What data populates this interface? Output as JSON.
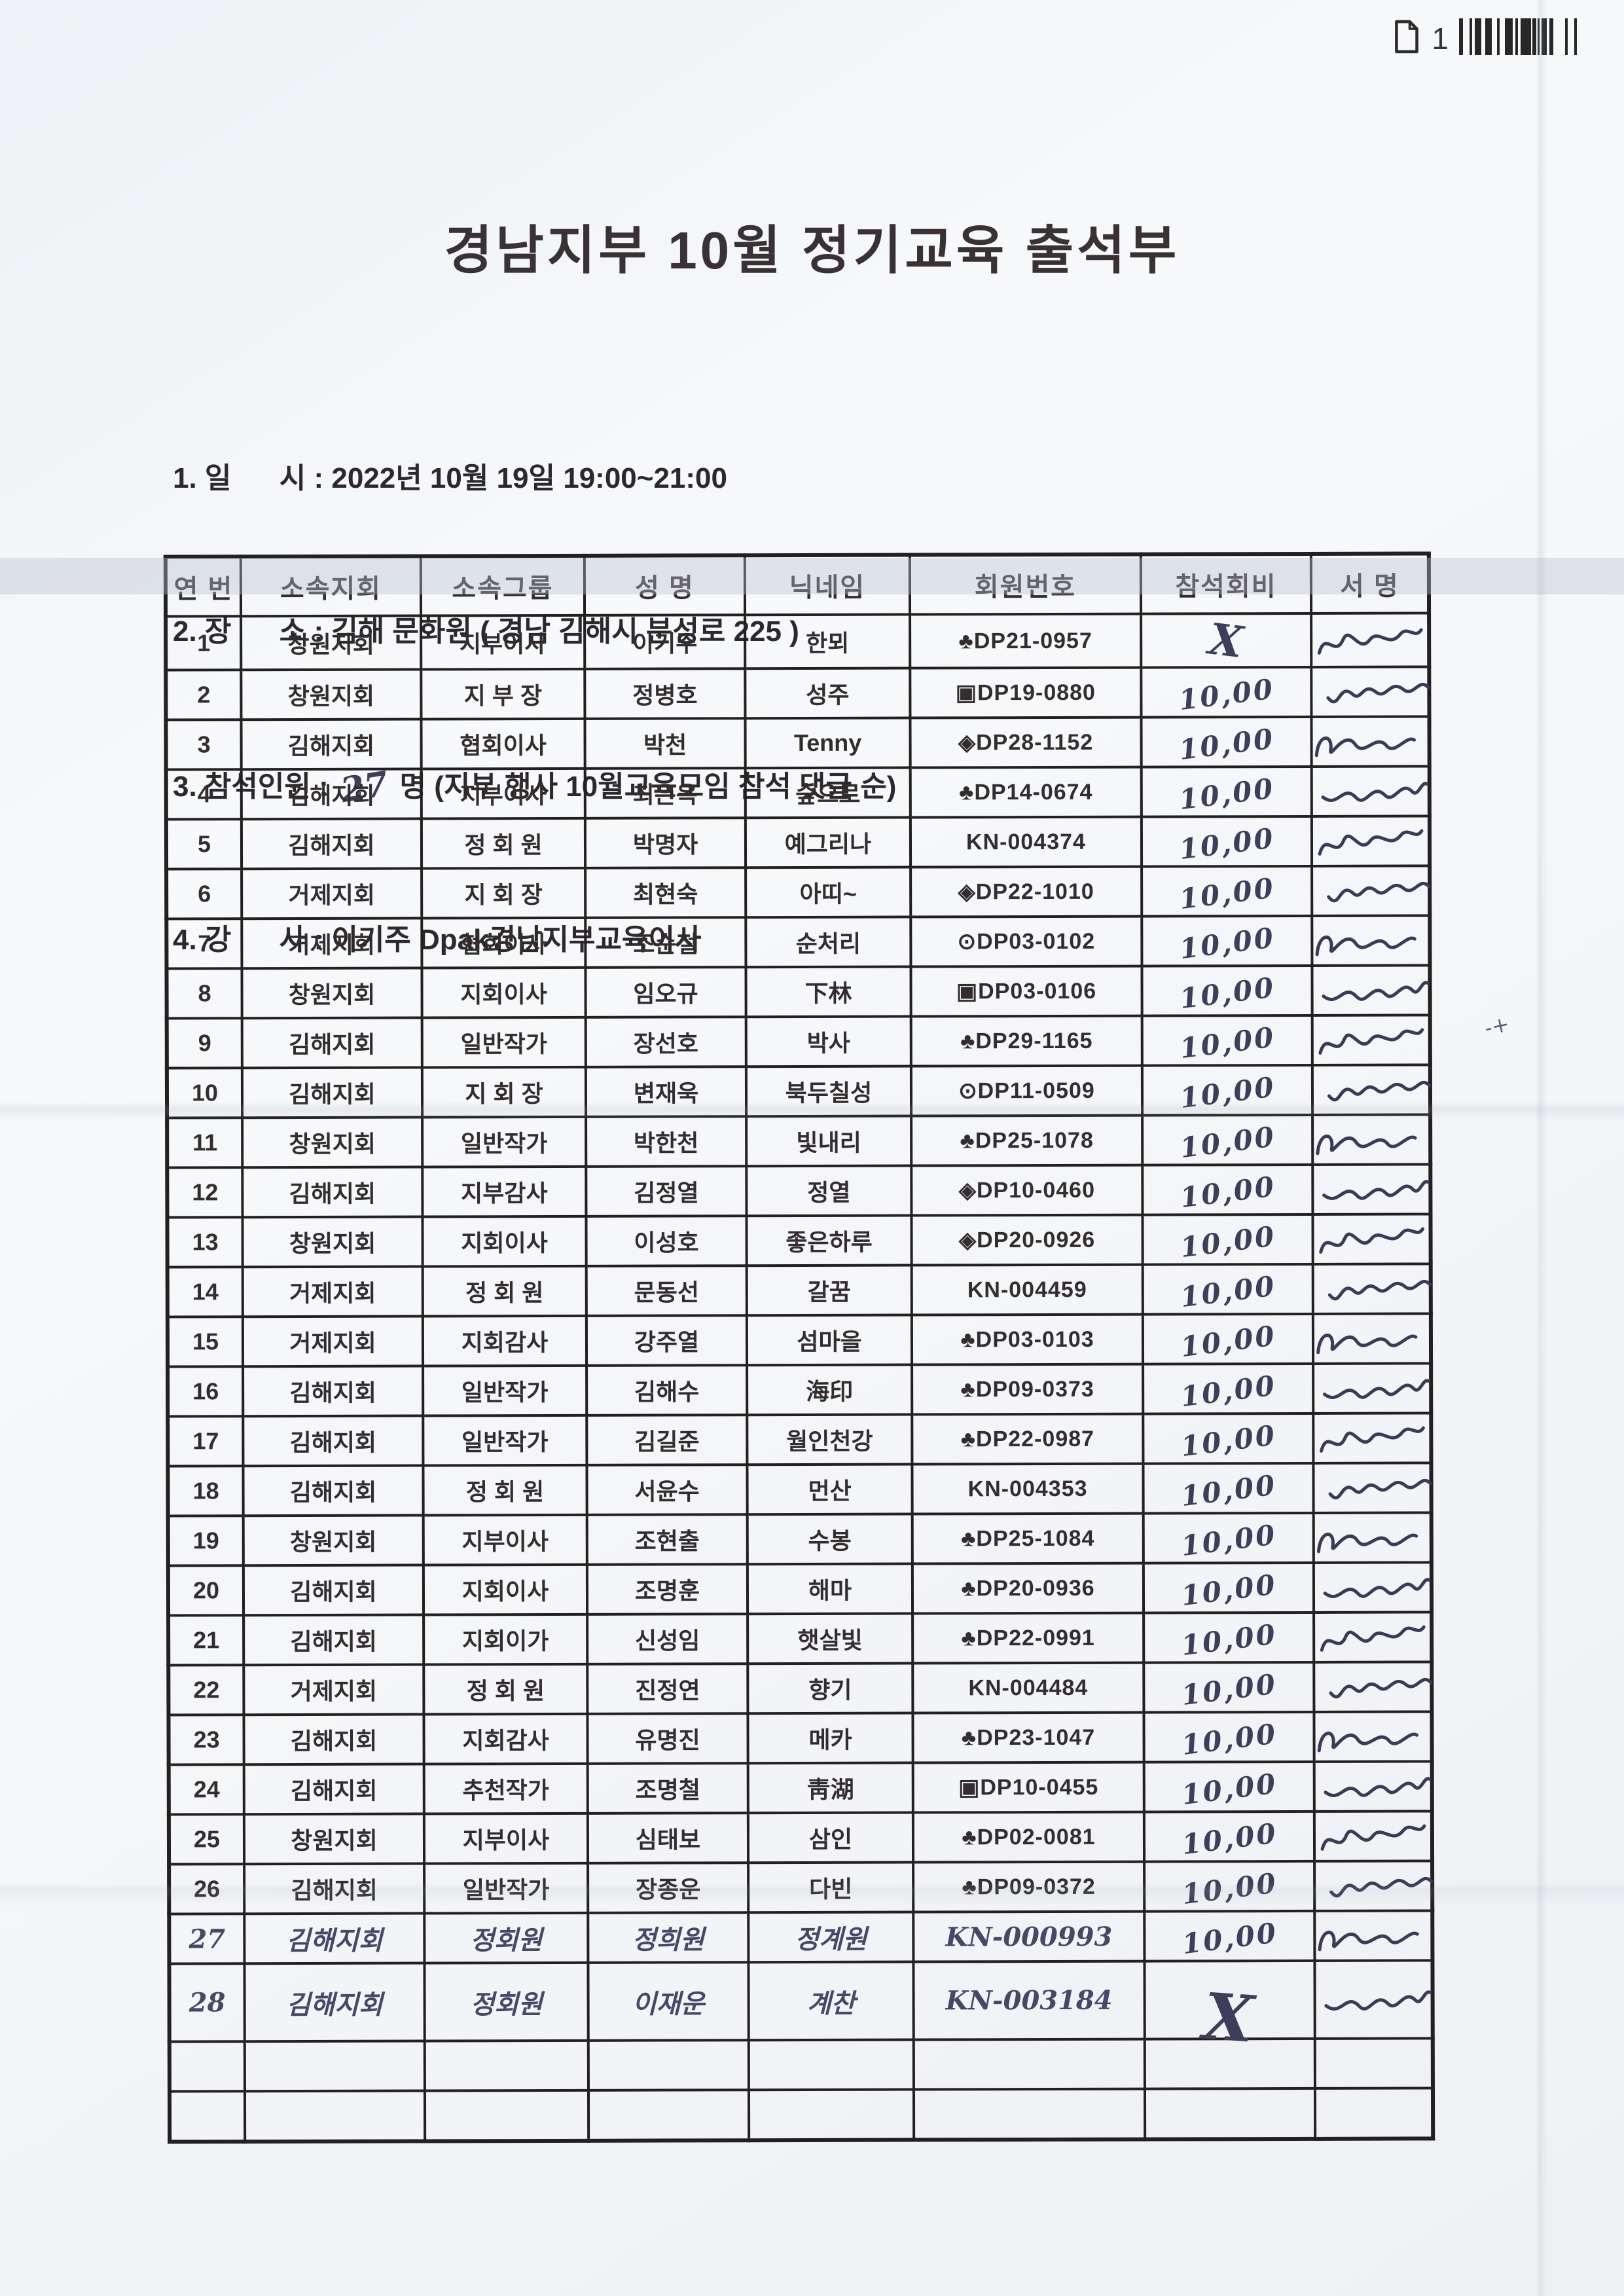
{
  "corner": {
    "page_number": "1"
  },
  "title": "경남지부 10월 정기교육 출석부",
  "info": [
    {
      "label": "1. 일      시 : ",
      "hand": "",
      "value": "2022년 10월 19일 19:00~21:00"
    },
    {
      "label": "2. 장      소 : ",
      "hand": "",
      "value": "김해 문화원 ( 경남 김해시 분성로 225 )"
    },
    {
      "label": "3. 참석인원 : ",
      "hand": "27",
      "value": " 명 (지부 행사 10월교육모임 참석 댓글 순)"
    },
    {
      "label": "4. 강      사 : ",
      "hand": "",
      "value": "이기주 Dpak경남지부교육이사"
    }
  ],
  "artifacts": {
    "stray_mark": "-+"
  },
  "table": {
    "headers": [
      "연 번",
      "소속지회",
      "소속그룹",
      "성 명",
      "닉네임",
      "회원번호",
      "참석회비",
      "서 명"
    ],
    "rows": [
      {
        "no": "1",
        "branch": "창원지회",
        "group": "지부이사",
        "name": "이기주",
        "nick": "한뫼",
        "member": "♣DP21-0957",
        "fee": "X",
        "sig": true,
        "hand": false
      },
      {
        "no": "2",
        "branch": "창원지회",
        "group": "지 부 장",
        "name": "정병호",
        "nick": "성주",
        "member": "▣DP19-0880",
        "fee": "10,00",
        "sig": true,
        "hand": false
      },
      {
        "no": "3",
        "branch": "김해지회",
        "group": "협회이사",
        "name": "박천",
        "nick": "Tenny",
        "member": "◈DP28-1152",
        "fee": "10,00",
        "sig": true,
        "hand": false
      },
      {
        "no": "4",
        "branch": "김해지회",
        "group": "지부이사",
        "name": "최은옥",
        "nick": "숲으로",
        "member": "♣DP14-0674",
        "fee": "10,00",
        "sig": true,
        "hand": false
      },
      {
        "no": "5",
        "branch": "김해지회",
        "group": "정 회 원",
        "name": "박명자",
        "nick": "예그리나",
        "member": "KN-004374",
        "fee": "10,00",
        "sig": true,
        "hand": false
      },
      {
        "no": "6",
        "branch": "거제지회",
        "group": "지 회 장",
        "name": "최현숙",
        "nick": "아띠~",
        "member": "◈DP22-1010",
        "fee": "10,00",
        "sig": true,
        "hand": false
      },
      {
        "no": "7",
        "branch": "거제지회",
        "group": "협회이사",
        "name": "조순철",
        "nick": "순처리",
        "member": "⊙DP03-0102",
        "fee": "10,00",
        "sig": true,
        "hand": false
      },
      {
        "no": "8",
        "branch": "창원지회",
        "group": "지회이사",
        "name": "임오규",
        "nick": "下林",
        "member": "▣DP03-0106",
        "fee": "10,00",
        "sig": true,
        "hand": false
      },
      {
        "no": "9",
        "branch": "김해지회",
        "group": "일반작가",
        "name": "장선호",
        "nick": "박사",
        "member": "♣DP29-1165",
        "fee": "10,00",
        "sig": true,
        "hand": false
      },
      {
        "no": "10",
        "branch": "김해지회",
        "group": "지 회 장",
        "name": "변재욱",
        "nick": "북두칠성",
        "member": "⊙DP11-0509",
        "fee": "10,00",
        "sig": true,
        "hand": false
      },
      {
        "no": "11",
        "branch": "창원지회",
        "group": "일반작가",
        "name": "박한천",
        "nick": "빛내리",
        "member": "♣DP25-1078",
        "fee": "10,00",
        "sig": true,
        "hand": false
      },
      {
        "no": "12",
        "branch": "김해지회",
        "group": "지부감사",
        "name": "김정열",
        "nick": "정열",
        "member": "◈DP10-0460",
        "fee": "10,00",
        "sig": true,
        "hand": false
      },
      {
        "no": "13",
        "branch": "창원지회",
        "group": "지회이사",
        "name": "이성호",
        "nick": "좋은하루",
        "member": "◈DP20-0926",
        "fee": "10,00",
        "sig": true,
        "hand": false
      },
      {
        "no": "14",
        "branch": "거제지회",
        "group": "정 회 원",
        "name": "문동선",
        "nick": "갈꿈",
        "member": "KN-004459",
        "fee": "10,00",
        "sig": true,
        "hand": false
      },
      {
        "no": "15",
        "branch": "거제지회",
        "group": "지회감사",
        "name": "강주열",
        "nick": "섬마을",
        "member": "♣DP03-0103",
        "fee": "10,00",
        "sig": true,
        "hand": false
      },
      {
        "no": "16",
        "branch": "김해지회",
        "group": "일반작가",
        "name": "김해수",
        "nick": "海印",
        "member": "♣DP09-0373",
        "fee": "10,00",
        "sig": true,
        "hand": false
      },
      {
        "no": "17",
        "branch": "김해지회",
        "group": "일반작가",
        "name": "김길준",
        "nick": "월인천강",
        "member": "♣DP22-0987",
        "fee": "10,00",
        "sig": true,
        "hand": false
      },
      {
        "no": "18",
        "branch": "김해지회",
        "group": "정 회 원",
        "name": "서윤수",
        "nick": "먼산",
        "member": "KN-004353",
        "fee": "10,00",
        "sig": true,
        "hand": false
      },
      {
        "no": "19",
        "branch": "창원지회",
        "group": "지부이사",
        "name": "조현출",
        "nick": "수봉",
        "member": "♣DP25-1084",
        "fee": "10,00",
        "sig": true,
        "hand": false
      },
      {
        "no": "20",
        "branch": "김해지회",
        "group": "지회이사",
        "name": "조명훈",
        "nick": "해마",
        "member": "♣DP20-0936",
        "fee": "10,00",
        "sig": true,
        "hand": false
      },
      {
        "no": "21",
        "branch": "김해지회",
        "group": "지회이가",
        "name": "신성임",
        "nick": "햇살빛",
        "member": "♣DP22-0991",
        "fee": "10,00",
        "sig": true,
        "hand": false
      },
      {
        "no": "22",
        "branch": "거제지회",
        "group": "정 회 원",
        "name": "진정연",
        "nick": "향기",
        "member": "KN-004484",
        "fee": "10,00",
        "sig": true,
        "hand": false
      },
      {
        "no": "23",
        "branch": "김해지회",
        "group": "지회감사",
        "name": "유명진",
        "nick": "메카",
        "member": "♣DP23-1047",
        "fee": "10,00",
        "sig": true,
        "hand": false
      },
      {
        "no": "24",
        "branch": "김해지회",
        "group": "추천작가",
        "name": "조명철",
        "nick": "靑湖",
        "member": "▣DP10-0455",
        "fee": "10,00",
        "sig": true,
        "hand": false
      },
      {
        "no": "25",
        "branch": "창원지회",
        "group": "지부이사",
        "name": "심태보",
        "nick": "삼인",
        "member": "♣DP02-0081",
        "fee": "10,00",
        "sig": true,
        "hand": false
      },
      {
        "no": "26",
        "branch": "김해지회",
        "group": "일반작가",
        "name": "장종운",
        "nick": "다빈",
        "member": "♣DP09-0372",
        "fee": "10,00",
        "sig": true,
        "hand": false
      },
      {
        "no": "27",
        "branch": "김해지회",
        "group": "정회원",
        "name": "정희원",
        "nick": "정계원",
        "member": "KN-000993",
        "fee": "10,00",
        "sig": true,
        "hand": true
      },
      {
        "no": "28",
        "branch": "김해지회",
        "group": "정회원",
        "name": "이재운",
        "nick": "계찬",
        "member": "KN-003184",
        "fee": "X",
        "sig": true,
        "hand": true
      },
      {
        "no": "",
        "branch": "",
        "group": "",
        "name": "",
        "nick": "",
        "member": "",
        "fee": "",
        "sig": false,
        "hand": false
      },
      {
        "no": "",
        "branch": "",
        "group": "",
        "name": "",
        "nick": "",
        "member": "",
        "fee": "",
        "sig": false,
        "hand": false
      }
    ]
  }
}
